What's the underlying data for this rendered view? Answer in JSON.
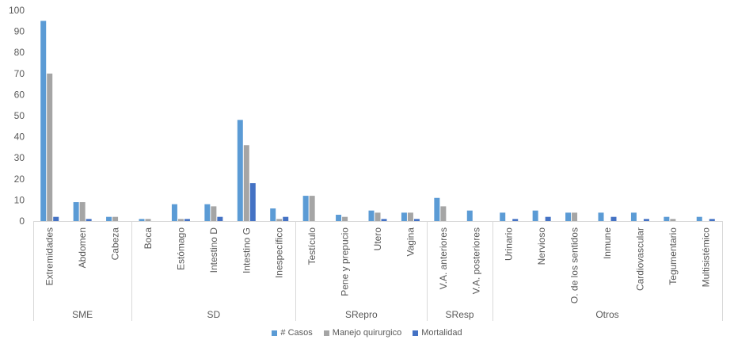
{
  "chart_data": {
    "type": "bar",
    "title": "",
    "xlabel": "",
    "ylabel": "",
    "ylim": [
      0,
      100
    ],
    "yticks": [
      0,
      10,
      20,
      30,
      40,
      50,
      60,
      70,
      80,
      90,
      100
    ],
    "grid": false,
    "legend_position": "bottom",
    "categories": [
      "Extremidades",
      "Abdomen",
      "Cabeza",
      "Boca",
      "Estómago",
      "Intestino D",
      "Intestino G",
      "Inespecífico",
      "Testículo",
      "Pene y prepucio",
      "Utero",
      "Vagina",
      "V.A. anteriores",
      "V.A. posteriores",
      "Urinario",
      "Nervioso",
      "O. de los sentidos",
      "Inmune",
      "Cardiovascular",
      "Tegumentario",
      "Multisistémico"
    ],
    "groups": [
      {
        "label": "SME",
        "count": 3
      },
      {
        "label": "SD",
        "count": 5
      },
      {
        "label": "SRepro",
        "count": 4
      },
      {
        "label": "SResp",
        "count": 2
      },
      {
        "label": "Otros",
        "count": 7
      }
    ],
    "series": [
      {
        "name": "# Casos",
        "color": "#5B9BD5",
        "values": [
          95,
          9,
          2,
          1,
          8,
          8,
          48,
          6,
          12,
          3,
          5,
          4,
          11,
          5,
          4,
          5,
          4,
          4,
          4,
          2,
          2
        ]
      },
      {
        "name": "Manejo quirurgico",
        "color": "#A5A5A5",
        "values": [
          70,
          9,
          2,
          1,
          1,
          7,
          36,
          1,
          12,
          2,
          4,
          4,
          7,
          0,
          0,
          0,
          4,
          0,
          0,
          1,
          0
        ]
      },
      {
        "name": "Mortalidad",
        "color": "#4472C4",
        "values": [
          2,
          1,
          0,
          0,
          1,
          2,
          18,
          2,
          0,
          0,
          1,
          1,
          0,
          0,
          1,
          2,
          0,
          2,
          1,
          0,
          1
        ]
      }
    ]
  }
}
